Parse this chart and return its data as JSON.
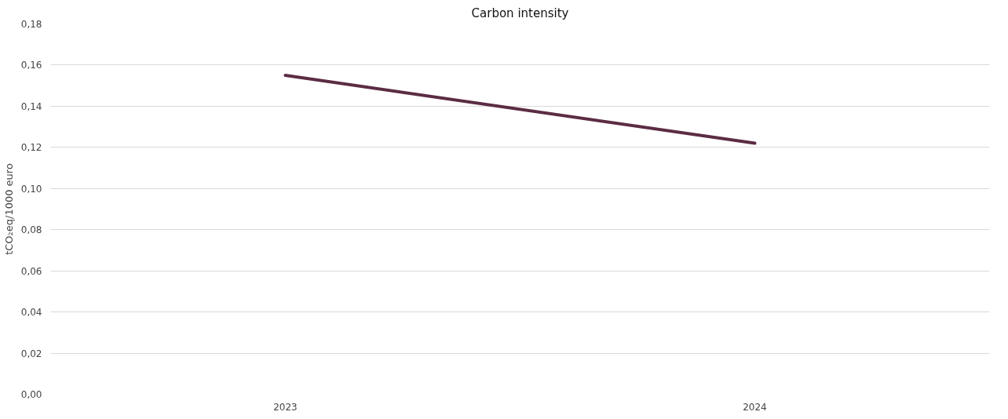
{
  "chart_data": {
    "type": "line",
    "title": "Carbon intensity",
    "ylabel": "tCO₂eq/1000 euro",
    "categories": [
      "2023",
      "2024"
    ],
    "series": [
      {
        "color": "#5b2c44",
        "values": [
          0.155,
          0.122
        ]
      }
    ],
    "ylim": [
      0,
      0.18
    ],
    "yticks": [
      {
        "value": 0,
        "label": "0,00"
      },
      {
        "value": 0.02,
        "label": "0,02"
      },
      {
        "value": 0.04,
        "label": "0,04"
      },
      {
        "value": 0.06,
        "label": "0,06"
      },
      {
        "value": 0.08,
        "label": "0,08"
      },
      {
        "value": 0.1,
        "label": "0,10"
      },
      {
        "value": 0.12,
        "label": "0,12"
      },
      {
        "value": 0.14,
        "label": "0,14"
      },
      {
        "value": 0.16,
        "label": "0,16"
      },
      {
        "value": 0.18,
        "label": "0,18"
      }
    ],
    "grid": "y",
    "marker": "none",
    "line_style": "solid"
  }
}
